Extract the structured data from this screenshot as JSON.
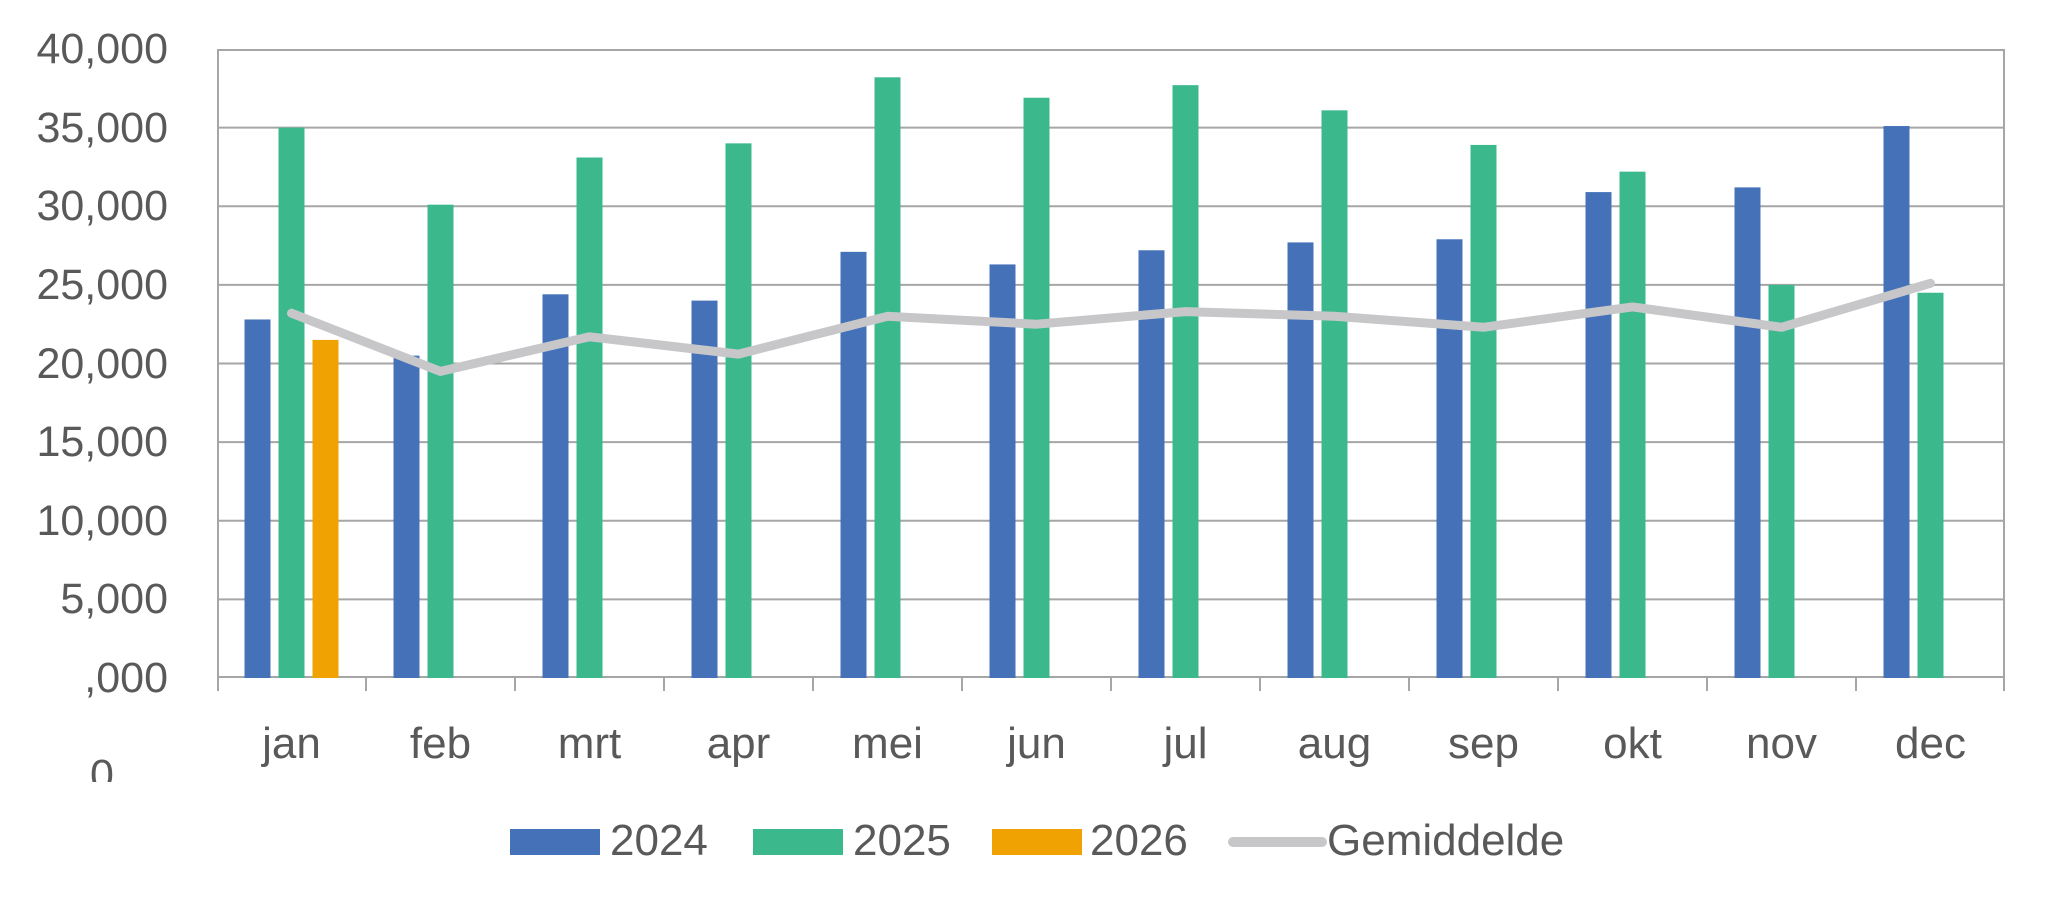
{
  "chart_data": {
    "type": "bar",
    "subtype": "grouped-bars-with-line-overlay",
    "title": "",
    "categories": [
      "jan",
      "feb",
      "mrt",
      "apr",
      "mei",
      "jun",
      "jul",
      "aug",
      "sep",
      "okt",
      "nov",
      "dec"
    ],
    "series": [
      {
        "name": "2024",
        "type": "bar",
        "color": "#4471B8",
        "values": [
          22800,
          20500,
          24400,
          24000,
          27100,
          26300,
          27200,
          27700,
          27900,
          30900,
          31200,
          35100
        ]
      },
      {
        "name": "2025",
        "type": "bar",
        "color": "#3BB98C",
        "values": [
          35000,
          30100,
          33100,
          34000,
          38200,
          36900,
          37700,
          36100,
          33900,
          32200,
          25000,
          24500
        ]
      },
      {
        "name": "2026",
        "type": "bar",
        "color": "#F0A202",
        "values": [
          21500,
          null,
          null,
          null,
          null,
          null,
          null,
          null,
          null,
          null,
          null,
          null
        ]
      },
      {
        "name": "Gemiddelde",
        "type": "line",
        "color": "#C7C7CA",
        "values": [
          23200,
          19500,
          21700,
          20600,
          23000,
          22500,
          23300,
          23000,
          22300,
          23600,
          22300,
          25100
        ]
      }
    ],
    "y_axis": {
      "min": 0,
      "max": 40000,
      "step": 5000,
      "tick_labels": [
        "40,000",
        "35,000",
        "30,000",
        "25,000",
        "20,000",
        "15,000",
        "10,000",
        "5,000",
        ",000"
      ],
      "stray_label": "0"
    },
    "x_axis": {
      "tick_labels": [
        "jan",
        "feb",
        "mrt",
        "apr",
        "mei",
        "jun",
        "jul",
        "aug",
        "sep",
        "okt",
        "nov",
        "dec"
      ]
    },
    "legend_position": "bottom",
    "grid": true,
    "colors": {
      "gridline": "#A6A6A6",
      "axis_text": "#595959",
      "background": "#FFFFFF"
    }
  }
}
